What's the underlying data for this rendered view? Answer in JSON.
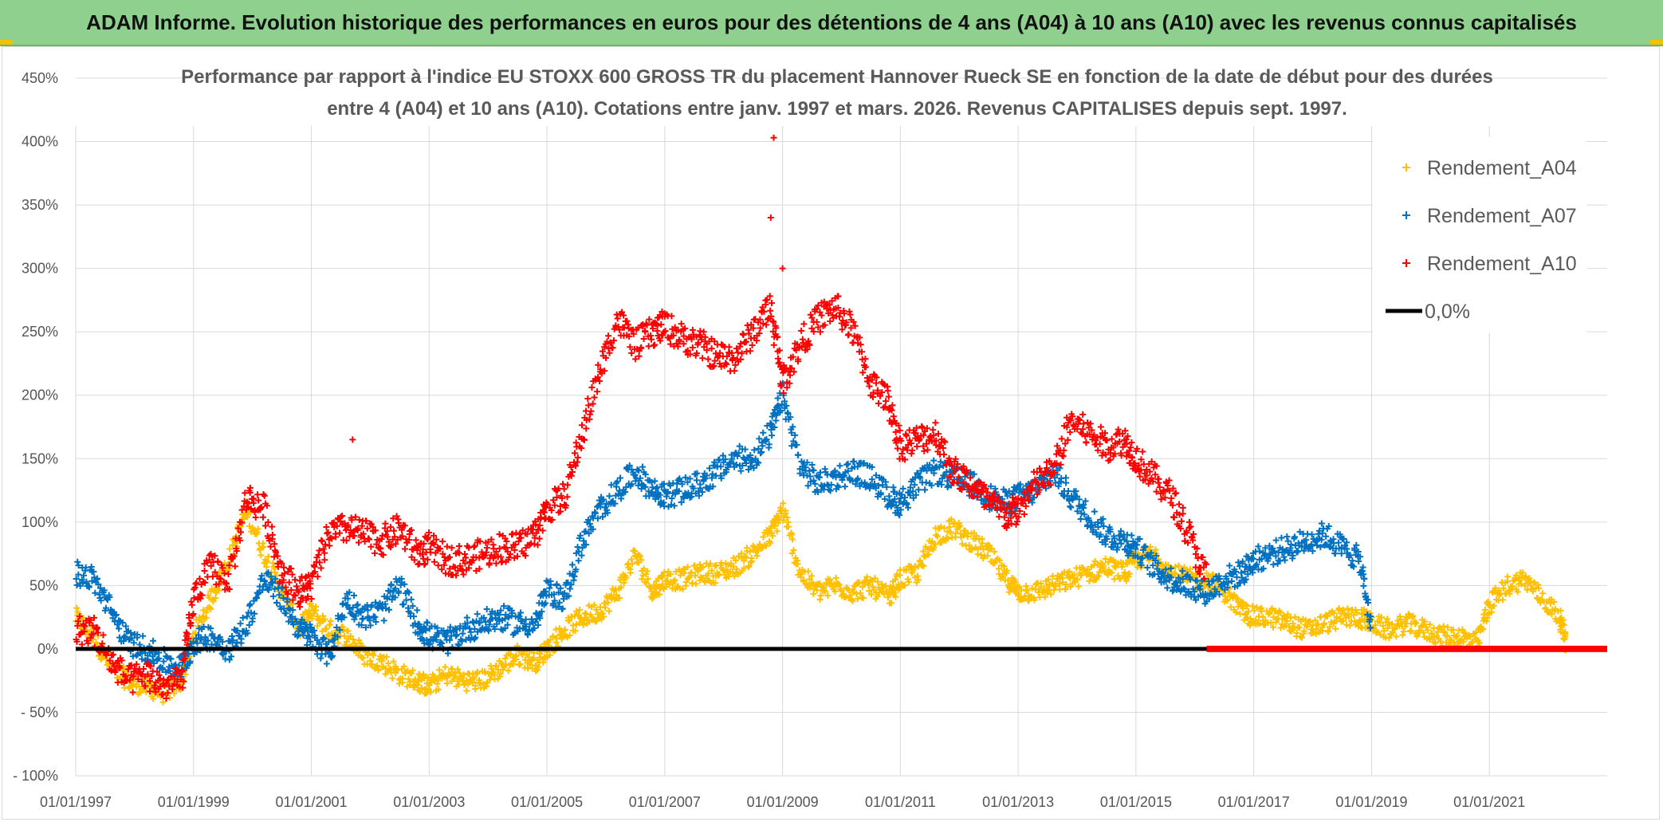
{
  "banner": {
    "text": "ADAM Informe. Evolution historique des performances en euros pour des détentions de 4 ans (A04) à 10 ans (A10) avec les revenus connus capitalisés"
  },
  "colors": {
    "banner_bg": "#8fd08f",
    "a04": "#ffc000",
    "a07": "#0070c0",
    "a10": "#ff0000",
    "zero": "#000000",
    "grid": "#d9d9d9"
  },
  "chart_data": {
    "type": "scatter",
    "title_lines": [
      "Performance par rapport à l'indice EU STOXX 600 GROSS TR  du placement Hannover Rueck SE en fonction de la date de début pour des durées",
      "entre 4 (A04) et 10 ans (A10). Cotations entre janv. 1997 et mars. 2026. Revenus CAPITALISES depuis sept. 1997."
    ],
    "xlabel": "",
    "ylabel": "",
    "xlim": [
      1997.0,
      2023.0
    ],
    "ylim": [
      -100,
      450
    ],
    "x_ticks": [
      {
        "value": 1997,
        "label": "01/01/1997"
      },
      {
        "value": 1999,
        "label": "01/01/1999"
      },
      {
        "value": 2001,
        "label": "01/01/2001"
      },
      {
        "value": 2003,
        "label": "01/01/2003"
      },
      {
        "value": 2005,
        "label": "01/01/2005"
      },
      {
        "value": 2007,
        "label": "01/01/2007"
      },
      {
        "value": 2009,
        "label": "01/01/2009"
      },
      {
        "value": 2011,
        "label": "01/01/2011"
      },
      {
        "value": 2013,
        "label": "01/01/2013"
      },
      {
        "value": 2015,
        "label": "01/01/2015"
      },
      {
        "value": 2017,
        "label": "01/01/2017"
      },
      {
        "value": 2019,
        "label": "01/01/2019"
      },
      {
        "value": 2021,
        "label": "01/01/2021"
      }
    ],
    "y_ticks": [
      {
        "value": 450,
        "label": "450%"
      },
      {
        "value": 400,
        "label": "400%"
      },
      {
        "value": 350,
        "label": "350%"
      },
      {
        "value": 300,
        "label": "300%"
      },
      {
        "value": 250,
        "label": "250%"
      },
      {
        "value": 200,
        "label": "200%"
      },
      {
        "value": 150,
        "label": "150%"
      },
      {
        "value": 100,
        "label": "100%"
      },
      {
        "value": 50,
        "label": "50%"
      },
      {
        "value": 0,
        "label": "0%"
      },
      {
        "value": -50,
        "label": "- 50%"
      },
      {
        "value": -100,
        "label": "- 100%"
      }
    ],
    "series": [
      {
        "name": "Rendement_A04",
        "color": "#ffc000",
        "x": [
          1997.0,
          1997.3,
          1997.6,
          1997.9,
          1998.2,
          1998.5,
          1998.8,
          1999.0,
          1999.3,
          1999.6,
          1999.9,
          2000.2,
          2000.5,
          2000.8,
          2001.0,
          2001.3,
          2001.6,
          2001.9,
          2002.2,
          2002.5,
          2002.8,
          2003.0,
          2003.3,
          2003.6,
          2003.9,
          2004.2,
          2004.5,
          2004.8,
          2005.0,
          2005.3,
          2005.6,
          2005.9,
          2006.2,
          2006.5,
          2006.8,
          2007.0,
          2007.3,
          2007.6,
          2007.9,
          2008.2,
          2008.5,
          2008.8,
          2009.0,
          2009.3,
          2009.6,
          2009.9,
          2010.2,
          2010.5,
          2010.8,
          2011.0,
          2011.3,
          2011.6,
          2011.9,
          2012.2,
          2012.5,
          2012.8,
          2013.0,
          2013.3,
          2013.6,
          2013.9,
          2014.2,
          2014.5,
          2014.8,
          2015.0,
          2015.3,
          2015.6,
          2015.9,
          2016.2,
          2016.5,
          2016.8,
          2017.0,
          2017.3,
          2017.6,
          2017.9,
          2018.2,
          2018.5,
          2018.8,
          2019.0,
          2019.3,
          2019.6,
          2019.9,
          2020.2,
          2020.5,
          2020.8,
          2021.0,
          2021.3,
          2021.6,
          2021.9,
          2022.2,
          2022.3
        ],
        "values": [
          25,
          10,
          -15,
          -25,
          -30,
          -35,
          -25,
          10,
          40,
          70,
          110,
          75,
          45,
          15,
          30,
          15,
          10,
          -5,
          -10,
          -20,
          -25,
          -30,
          -20,
          -25,
          -25,
          -15,
          -5,
          -10,
          0,
          15,
          25,
          30,
          45,
          75,
          45,
          55,
          55,
          60,
          60,
          65,
          75,
          90,
          110,
          60,
          45,
          50,
          45,
          50,
          40,
          55,
          60,
          90,
          95,
          85,
          75,
          55,
          45,
          45,
          50,
          55,
          60,
          65,
          60,
          70,
          75,
          60,
          55,
          55,
          45,
          30,
          25,
          25,
          20,
          15,
          20,
          25,
          25,
          20,
          15,
          20,
          15,
          10,
          10,
          5,
          35,
          50,
          55,
          40,
          25,
          5
        ],
        "jitter": 8
      },
      {
        "name": "Rendement_A07",
        "color": "#0070c0",
        "x": [
          1997.0,
          1997.3,
          1997.6,
          1997.9,
          1998.2,
          1998.5,
          1998.8,
          1999.0,
          1999.3,
          1999.6,
          1999.9,
          2000.2,
          2000.5,
          2000.8,
          2001.0,
          2001.3,
          2001.6,
          2001.9,
          2002.2,
          2002.5,
          2002.8,
          2003.0,
          2003.3,
          2003.6,
          2003.9,
          2004.2,
          2004.5,
          2004.8,
          2005.0,
          2005.3,
          2005.6,
          2005.9,
          2006.2,
          2006.5,
          2006.8,
          2007.0,
          2007.3,
          2007.6,
          2007.9,
          2008.2,
          2008.5,
          2008.8,
          2009.0,
          2009.3,
          2009.6,
          2009.9,
          2010.2,
          2010.5,
          2010.8,
          2011.0,
          2011.3,
          2011.6,
          2011.9,
          2012.2,
          2012.5,
          2012.8,
          2013.0,
          2013.3,
          2013.6,
          2013.9,
          2014.2,
          2014.5,
          2014.8,
          2015.0,
          2015.3,
          2015.6,
          2015.9,
          2016.2,
          2016.5,
          2016.8,
          2017.0,
          2017.3,
          2017.6,
          2017.9,
          2018.2,
          2018.5,
          2018.8,
          2019.0
        ],
        "values": [
          60,
          55,
          30,
          5,
          0,
          -10,
          -15,
          5,
          10,
          0,
          20,
          55,
          40,
          15,
          10,
          -5,
          40,
          25,
          30,
          50,
          20,
          10,
          5,
          15,
          20,
          25,
          20,
          20,
          45,
          40,
          85,
          110,
          125,
          140,
          125,
          120,
          125,
          130,
          140,
          150,
          150,
          170,
          200,
          145,
          130,
          135,
          140,
          135,
          120,
          115,
          130,
          140,
          135,
          130,
          120,
          115,
          120,
          125,
          140,
          120,
          105,
          90,
          85,
          80,
          65,
          55,
          50,
          45,
          55,
          60,
          70,
          75,
          80,
          85,
          90,
          80,
          70,
          15
        ],
        "jitter": 10
      },
      {
        "name": "Rendement_A10",
        "color": "#ff0000",
        "x": [
          1997.0,
          1997.3,
          1997.6,
          1997.9,
          1998.2,
          1998.5,
          1998.8,
          1999.0,
          1999.3,
          1999.6,
          1999.9,
          2000.2,
          2000.5,
          2000.8,
          2001.0,
          2001.3,
          2001.6,
          2001.9,
          2002.2,
          2002.5,
          2002.8,
          2003.0,
          2003.3,
          2003.6,
          2003.9,
          2004.2,
          2004.5,
          2004.8,
          2005.0,
          2005.3,
          2005.6,
          2005.9,
          2006.2,
          2006.5,
          2006.8,
          2007.0,
          2007.3,
          2007.6,
          2007.9,
          2008.2,
          2008.5,
          2008.8,
          2009.0,
          2009.3,
          2009.6,
          2009.9,
          2010.2,
          2010.5,
          2010.8,
          2011.0,
          2011.3,
          2011.6,
          2011.9,
          2012.2,
          2012.5,
          2012.8,
          2013.0,
          2013.3,
          2013.6,
          2013.9,
          2014.2,
          2014.5,
          2014.8,
          2015.0,
          2015.3,
          2015.6,
          2015.9,
          2016.2
        ],
        "values": [
          15,
          15,
          -10,
          -25,
          -20,
          -30,
          -25,
          40,
          65,
          55,
          120,
          110,
          60,
          45,
          50,
          90,
          95,
          90,
          85,
          95,
          75,
          80,
          70,
          70,
          75,
          80,
          80,
          90,
          110,
          120,
          170,
          220,
          260,
          240,
          250,
          255,
          245,
          240,
          230,
          230,
          250,
          270,
          210,
          240,
          260,
          270,
          250,
          210,
          195,
          160,
          165,
          170,
          140,
          130,
          115,
          105,
          110,
          130,
          140,
          180,
          170,
          160,
          165,
          150,
          135,
          120,
          90,
          55
        ],
        "jitter": 12,
        "outliers": [
          [
            2008.85,
            403
          ],
          [
            2008.8,
            340
          ],
          [
            2001.7,
            165
          ],
          [
            2009.0,
            300
          ]
        ]
      }
    ],
    "reference_line": {
      "name": "0,0%",
      "y": 0,
      "color": "#000000",
      "x_range": [
        1997.0,
        2023.0
      ]
    },
    "red_zero_segment": {
      "x_range": [
        2016.2,
        2023.0
      ],
      "y": 0
    },
    "legend": {
      "position": "top-right",
      "items": [
        "Rendement_A04",
        "Rendement_A07",
        "Rendement_A10",
        "0,0%"
      ]
    }
  }
}
